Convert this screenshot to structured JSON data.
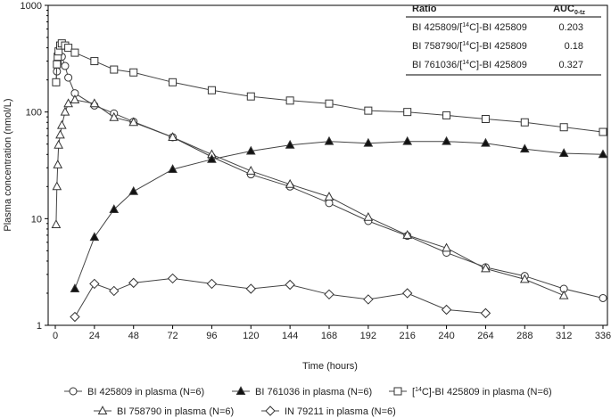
{
  "colors": {
    "axis": "#000000",
    "series": "#444444",
    "marker_stroke": "#333333",
    "filled_marker": "#111111",
    "background": "#ffffff"
  },
  "ratio_table": {
    "headers": {
      "ratio": "Ratio",
      "auc": "AUC",
      "auc_sub": "0-tz"
    },
    "rows": [
      {
        "pre": "BI 425809/[",
        "sup": "14",
        "post": "C]-BI 425809",
        "auc": "0.203"
      },
      {
        "pre": "BI 758790/[",
        "sup": "14",
        "post": "C]-BI 425809",
        "auc": "0.18"
      },
      {
        "pre": "BI 761036/[",
        "sup": "14",
        "post": "C]-BI 425809",
        "auc": "0.327"
      }
    ]
  },
  "chart_data": {
    "type": "line",
    "xlabel": "Time (hours)",
    "ylabel": "Plasma concentration (nmol/L)",
    "xlim": [
      -2,
      338
    ],
    "ylim": [
      0.9,
      1000
    ],
    "yscale": "log",
    "xticks": [
      0,
      24,
      48,
      72,
      96,
      120,
      144,
      168,
      192,
      216,
      240,
      264,
      288,
      312,
      336
    ],
    "yticks": [
      1,
      10,
      100,
      1000
    ],
    "legend_position": "bottom",
    "series": [
      {
        "name": "BI 425809 in plasma (N=6)",
        "marker": "circle",
        "filled": false,
        "x": [
          0.5,
          1,
          1.5,
          2,
          3,
          4,
          6,
          8,
          12,
          24,
          36,
          48,
          72,
          96,
          120,
          144,
          168,
          192,
          216,
          240,
          264,
          288,
          312,
          336
        ],
        "y": [
          190,
          240,
          290,
          320,
          330,
          330,
          270,
          210,
          150,
          115,
          97,
          81,
          58,
          38,
          26,
          20,
          14,
          9.5,
          6.9,
          4.8,
          3.5,
          2.9,
          2.2,
          1.8
        ]
      },
      {
        "name": "BI 758790 in plasma (N=6)",
        "marker": "triangle",
        "filled": false,
        "x": [
          0.5,
          1,
          1.5,
          2,
          3,
          4,
          6,
          8,
          12,
          24,
          36,
          48,
          72,
          96,
          120,
          144,
          168,
          192,
          216,
          240,
          264,
          288,
          312
        ],
        "y": [
          8.8,
          20,
          32,
          49,
          61,
          75,
          100,
          120,
          130,
          120,
          89,
          80,
          58,
          40,
          28,
          21,
          16,
          10.3,
          7,
          5.3,
          3.4,
          2.7,
          1.9
        ]
      },
      {
        "name": "BI 761036 in plasma (N=6)",
        "marker": "triangle",
        "filled": true,
        "x": [
          12,
          24,
          36,
          48,
          72,
          96,
          120,
          144,
          168,
          192,
          216,
          240,
          264,
          288,
          312,
          336
        ],
        "y": [
          2.2,
          6.7,
          12.2,
          18,
          29,
          36,
          43,
          49,
          53,
          51,
          53,
          53,
          51,
          45,
          41,
          40
        ]
      },
      {
        "name": "IN 79211 in plasma (N=6)",
        "marker": "diamond",
        "filled": false,
        "x": [
          12,
          24,
          36,
          48,
          72,
          96,
          120,
          144,
          168,
          192,
          216,
          240,
          264
        ],
        "y": [
          1.2,
          2.45,
          2.1,
          2.5,
          2.75,
          2.45,
          2.2,
          2.4,
          1.95,
          1.75,
          2.0,
          1.4,
          1.3
        ]
      },
      {
        "name": "[14C]-BI 425809 in plasma (N=6)",
        "marker": "square",
        "filled": false,
        "x": [
          0.5,
          1,
          1.5,
          2,
          3,
          4,
          6,
          8,
          12,
          24,
          36,
          48,
          72,
          96,
          120,
          144,
          168,
          192,
          216,
          240,
          264,
          288,
          312,
          336
        ],
        "y": [
          190,
          280,
          330,
          370,
          420,
          440,
          420,
          400,
          360,
          300,
          250,
          235,
          190,
          160,
          140,
          128,
          120,
          103,
          100,
          93,
          86,
          80,
          72,
          65
        ]
      }
    ],
    "legend": [
      {
        "series_index": 0,
        "pre": "BI 425809 in plasma (N=6)",
        "sup": "",
        "post": ""
      },
      {
        "series_index": 2,
        "pre": "BI 761036 in plasma (N=6)",
        "sup": "",
        "post": ""
      },
      {
        "series_index": 4,
        "pre": "[",
        "sup": "14",
        "post": "C]-BI 425809 in plasma (N=6)"
      },
      {
        "series_index": 1,
        "pre": "BI 758790 in plasma (N=6)",
        "sup": "",
        "post": ""
      },
      {
        "series_index": 3,
        "pre": "IN 79211 in plasma (N=6)",
        "sup": "",
        "post": ""
      }
    ]
  }
}
